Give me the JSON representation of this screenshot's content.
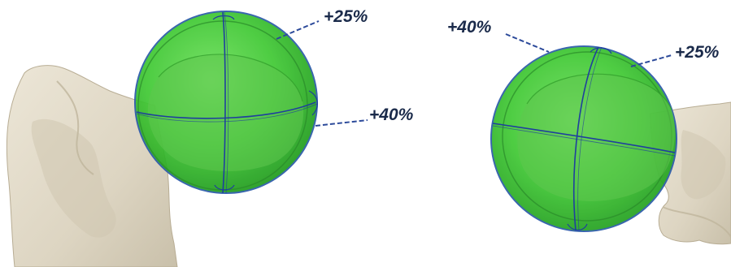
{
  "figure": {
    "left_view": {
      "labels": {
        "top": "+25%",
        "side": "+40%"
      }
    },
    "right_view": {
      "labels": {
        "top_left": "+40%",
        "top_right": "+25%"
      }
    },
    "colors": {
      "bone": "#e3dccb",
      "sphere": "#33c22c",
      "grid_line": "#1f3f9e",
      "leader_line": "#2c4a9a",
      "label_text": "#1a2a4a"
    }
  }
}
